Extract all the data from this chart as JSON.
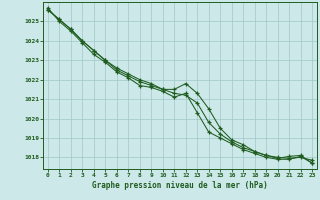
{
  "title": "Graphe pression niveau de la mer (hPa)",
  "x_ticks": [
    0,
    1,
    2,
    3,
    4,
    5,
    6,
    7,
    8,
    9,
    10,
    11,
    12,
    13,
    14,
    15,
    16,
    17,
    18,
    19,
    20,
    21,
    22,
    23
  ],
  "y_ticks": [
    1018,
    1019,
    1020,
    1021,
    1022,
    1023,
    1024,
    1025
  ],
  "y_min": 1017.4,
  "y_max": 1026.0,
  "line_color": "#1f5c1f",
  "bg_color": "#cce8e8",
  "grid_color": "#a0c8c8",
  "spine_color": "#1f5c1f",
  "line1": [
    1025.6,
    1025.1,
    1024.6,
    1024.0,
    1023.5,
    1023.0,
    1022.6,
    1022.3,
    1022.0,
    1021.8,
    1021.5,
    1021.3,
    1021.2,
    1020.8,
    1019.8,
    1019.2,
    1018.8,
    1018.5,
    1018.3,
    1018.1,
    1018.0,
    1017.95,
    1018.0,
    1017.85
  ],
  "line2": [
    1025.6,
    1025.1,
    1024.6,
    1024.0,
    1023.5,
    1023.0,
    1022.5,
    1022.2,
    1021.9,
    1021.7,
    1021.5,
    1021.5,
    1021.8,
    1021.3,
    1020.5,
    1019.5,
    1018.9,
    1018.65,
    1018.3,
    1018.1,
    1017.95,
    1018.05,
    1018.1,
    1017.7
  ],
  "line3": [
    1025.7,
    1025.0,
    1024.5,
    1023.9,
    1023.3,
    1022.9,
    1022.4,
    1022.1,
    1021.7,
    1021.6,
    1021.4,
    1021.1,
    1021.3,
    1020.3,
    1019.3,
    1019.0,
    1018.7,
    1018.4,
    1018.2,
    1018.0,
    1017.9,
    1017.9,
    1018.05,
    1017.7
  ]
}
